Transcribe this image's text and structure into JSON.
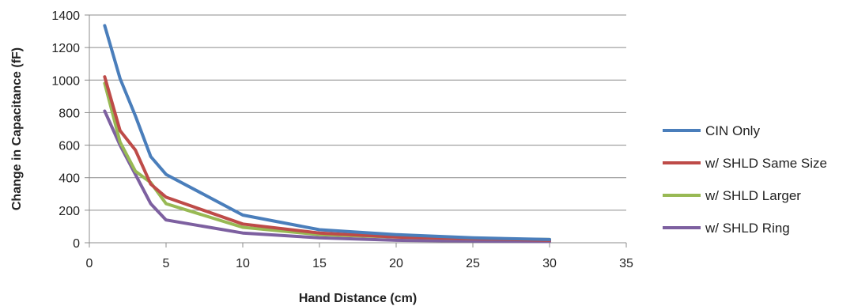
{
  "chart_data": {
    "type": "line",
    "title": "",
    "xlabel": "Hand Distance (cm)",
    "ylabel": "Change in Capacitance (fF)",
    "xlim": [
      0,
      35
    ],
    "ylim": [
      0,
      1400
    ],
    "xticks": [
      0,
      5,
      10,
      15,
      20,
      25,
      30,
      35
    ],
    "yticks": [
      0,
      200,
      400,
      600,
      800,
      1000,
      1200,
      1400
    ],
    "grid": "horizontal",
    "legend_position": "right",
    "series": [
      {
        "name": "CIN Only",
        "color": "#4A7EBB",
        "x": [
          1,
          2,
          3,
          4,
          5,
          10,
          15,
          20,
          25,
          30
        ],
        "y": [
          1335,
          1010,
          780,
          530,
          420,
          170,
          80,
          50,
          30,
          20
        ]
      },
      {
        "name": "w/ SHLD Same Size",
        "color": "#BE4B48",
        "x": [
          1,
          2,
          3,
          4,
          5,
          10,
          15,
          20,
          25,
          30
        ],
        "y": [
          1020,
          690,
          570,
          360,
          280,
          115,
          60,
          35,
          25,
          15
        ]
      },
      {
        "name": "w/ SHLD Larger",
        "color": "#98B954",
        "x": [
          1,
          2,
          3,
          4,
          5,
          10,
          15,
          20,
          25,
          30
        ],
        "y": [
          980,
          620,
          440,
          370,
          240,
          95,
          50,
          35,
          25,
          20
        ]
      },
      {
        "name": "w/ SHLD Ring",
        "color": "#7D60A0",
        "x": [
          1,
          2,
          3,
          4,
          5,
          10,
          15,
          20,
          25,
          30
        ],
        "y": [
          810,
          600,
          420,
          240,
          140,
          60,
          30,
          15,
          10,
          8
        ]
      }
    ]
  }
}
